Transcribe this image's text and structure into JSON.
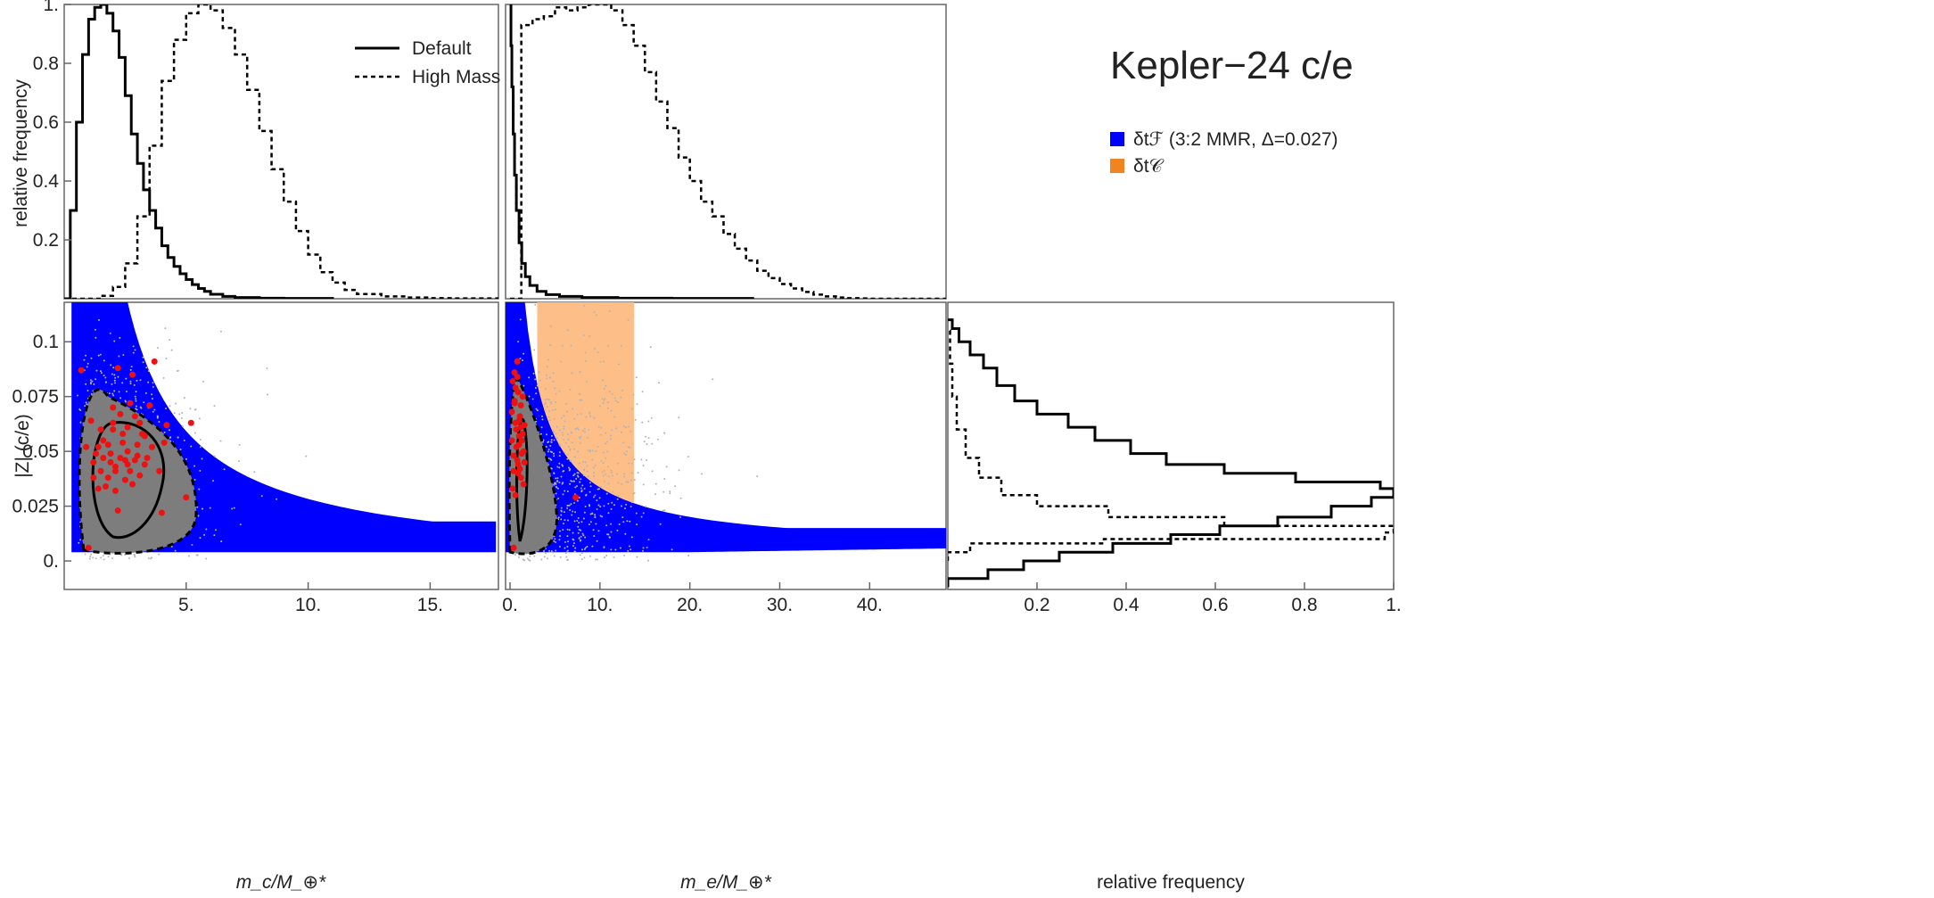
{
  "title": "Kepler−24 c/e",
  "colors": {
    "fundamental": "#0000ff",
    "chopping": "#f0841e",
    "chopping_fill": "#fdbf87",
    "posterior": "#7d7d7d",
    "scatter": "#b4b4b4",
    "samples": "#ee1111",
    "line": "#000000"
  },
  "legend_lines": [
    {
      "label": "Default",
      "style": "solid"
    },
    {
      "label": "High Mass",
      "style": "dashed"
    }
  ],
  "legend_regions": [
    {
      "label": "δtℱ (3:2 MMR, Δ=0.027)",
      "color": "#0000ff"
    },
    {
      "label": "δt𝒞",
      "color": "#f0841e"
    }
  ],
  "axis_labels": {
    "mc": "m_c/M_⊕*",
    "me": "m_e/M_⊕*",
    "z": "|Z| (c/e)",
    "relfreq": "relative frequency"
  },
  "chart_data": [
    {
      "panel": "top-left",
      "type": "line",
      "xlabel": "",
      "ylabel": "relative frequency",
      "xlim": [
        0,
        17.8
      ],
      "ylim": [
        0,
        1.0
      ],
      "yticks": [
        "0.2",
        "0.4",
        "0.6",
        "0.8",
        "1."
      ],
      "series": [
        {
          "name": "Default",
          "style": "solid",
          "x": [
            0.0,
            0.25,
            0.5,
            0.75,
            1.0,
            1.25,
            1.5,
            1.75,
            2.0,
            2.25,
            2.5,
            2.75,
            3.0,
            3.25,
            3.5,
            3.75,
            4.0,
            4.25,
            4.5,
            4.75,
            5.0,
            5.25,
            5.5,
            5.75,
            6.0,
            6.5,
            7.0,
            8.0,
            9.0,
            11.0
          ],
          "y": [
            0.0,
            0.3,
            0.6,
            0.83,
            0.95,
            0.99,
            1.0,
            0.97,
            0.91,
            0.82,
            0.69,
            0.56,
            0.46,
            0.37,
            0.3,
            0.24,
            0.18,
            0.14,
            0.11,
            0.085,
            0.065,
            0.048,
            0.035,
            0.025,
            0.015,
            0.008,
            0.004,
            0.002,
            0.001,
            0.0
          ]
        },
        {
          "name": "High Mass",
          "style": "dashed",
          "x": [
            0.0,
            1.5,
            2.0,
            2.5,
            3.0,
            3.5,
            4.0,
            4.5,
            5.0,
            5.5,
            6.0,
            6.5,
            7.0,
            7.5,
            8.0,
            8.5,
            9.0,
            9.5,
            10.0,
            10.5,
            11.0,
            11.5,
            12.0,
            13.0,
            14.0,
            15.0,
            16.0,
            17.8
          ],
          "y": [
            0.0,
            0.01,
            0.04,
            0.12,
            0.28,
            0.52,
            0.74,
            0.88,
            0.97,
            1.0,
            0.98,
            0.92,
            0.83,
            0.71,
            0.57,
            0.44,
            0.33,
            0.23,
            0.15,
            0.09,
            0.055,
            0.03,
            0.016,
            0.008,
            0.004,
            0.002,
            0.001,
            0.0
          ]
        }
      ]
    },
    {
      "panel": "top-middle",
      "type": "line",
      "xlim": [
        -0.5,
        48.5
      ],
      "ylim": [
        0,
        1.0
      ],
      "series": [
        {
          "name": "Default",
          "style": "solid",
          "x": [
            0.0,
            0.1,
            0.2,
            0.35,
            0.5,
            0.7,
            1.0,
            1.3,
            1.7,
            2.2,
            3.0,
            4.0,
            5.5,
            8.0,
            12.0,
            18.0,
            27.0
          ],
          "y": [
            1.0,
            0.86,
            0.72,
            0.56,
            0.42,
            0.3,
            0.19,
            0.12,
            0.075,
            0.045,
            0.025,
            0.014,
            0.008,
            0.004,
            0.002,
            0.001,
            0.0
          ]
        },
        {
          "name": "High Mass",
          "style": "dashed",
          "x": [
            0.0,
            1.25,
            2.5,
            3.75,
            5.0,
            6.25,
            7.5,
            8.75,
            10.0,
            11.25,
            12.5,
            13.75,
            15.0,
            16.25,
            17.5,
            18.75,
            20.0,
            21.25,
            22.5,
            23.75,
            25.0,
            26.25,
            27.5,
            28.75,
            30.0,
            31.25,
            32.5,
            33.75,
            35.0,
            36.25,
            37.5,
            38.75,
            40.0,
            42.5,
            45.0,
            48.5
          ],
          "y": [
            0.0,
            0.93,
            0.95,
            0.96,
            0.99,
            0.98,
            0.99,
            1.0,
            1.0,
            0.98,
            0.93,
            0.86,
            0.77,
            0.67,
            0.58,
            0.48,
            0.4,
            0.33,
            0.28,
            0.22,
            0.17,
            0.13,
            0.095,
            0.07,
            0.05,
            0.035,
            0.023,
            0.014,
            0.008,
            0.004,
            0.002,
            0.001,
            0.0,
            0.0,
            0.0,
            0.0
          ]
        }
      ]
    },
    {
      "panel": "bottom-left",
      "type": "scatter",
      "xlabel": "m_c/M_⊕*",
      "ylabel": "|Z| (c/e)",
      "xlim": [
        0,
        17.8
      ],
      "ylim": [
        -0.013,
        0.118
      ],
      "xticks": [
        "5.",
        "10.",
        "15."
      ],
      "yticks": [
        "0.",
        "0.025",
        "0.05",
        "0.075",
        "0.1"
      ],
      "points": [
        [
          0.7,
          0.087
        ],
        [
          0.9,
          0.052
        ],
        [
          1.1,
          0.064
        ],
        [
          1.2,
          0.045
        ],
        [
          1.3,
          0.049
        ],
        [
          1.4,
          0.052
        ],
        [
          1.5,
          0.041
        ],
        [
          1.6,
          0.047
        ],
        [
          1.7,
          0.034
        ],
        [
          1.8,
          0.053
        ],
        [
          1.9,
          0.049
        ],
        [
          2.0,
          0.06
        ],
        [
          2.1,
          0.043
        ],
        [
          2.2,
          0.088
        ],
        [
          2.3,
          0.047
        ],
        [
          2.4,
          0.054
        ],
        [
          2.5,
          0.037
        ],
        [
          2.6,
          0.05
        ],
        [
          2.7,
          0.072
        ],
        [
          2.8,
          0.085
        ],
        [
          2.9,
          0.046
        ],
        [
          3.0,
          0.053
        ],
        [
          3.1,
          0.039
        ],
        [
          3.2,
          0.058
        ],
        [
          3.4,
          0.047
        ],
        [
          3.6,
          0.052
        ],
        [
          3.9,
          0.041
        ],
        [
          4.1,
          0.054
        ],
        [
          2.0,
          0.063
        ],
        [
          2.3,
          0.067
        ],
        [
          2.6,
          0.061
        ],
        [
          2.9,
          0.066
        ],
        [
          1.6,
          0.055
        ],
        [
          1.8,
          0.038
        ],
        [
          2.1,
          0.032
        ],
        [
          2.5,
          0.046
        ],
        [
          2.8,
          0.035
        ],
        [
          3.3,
          0.044
        ],
        [
          1.4,
          0.033
        ],
        [
          1.2,
          0.038
        ],
        [
          1.0,
          0.006
        ],
        [
          2.0,
          0.07
        ],
        [
          2.4,
          0.058
        ],
        [
          2.7,
          0.041
        ],
        [
          3.1,
          0.063
        ],
        [
          3.7,
          0.091
        ],
        [
          4.2,
          0.062
        ],
        [
          2.2,
          0.023
        ],
        [
          3.5,
          0.071
        ],
        [
          5.0,
          0.029
        ],
        [
          4.0,
          0.022
        ],
        [
          1.9,
          0.045
        ],
        [
          2.6,
          0.044
        ],
        [
          3.0,
          0.048
        ],
        [
          3.3,
          0.057
        ],
        [
          5.2,
          0.063
        ],
        [
          1.5,
          0.06
        ],
        [
          2.1,
          0.041
        ]
      ]
    },
    {
      "panel": "bottom-middle",
      "type": "scatter",
      "xlabel": "m_e/M_⊕*",
      "xlim": [
        -0.5,
        48.5
      ],
      "ylim": [
        -0.013,
        0.118
      ],
      "xticks": [
        "0.",
        "10.",
        "20.",
        "30.",
        "40."
      ],
      "shaded_band_x": [
        3.0,
        13.8
      ],
      "points": [
        [
          0.2,
          0.055
        ],
        [
          0.3,
          0.082
        ],
        [
          0.4,
          0.048
        ],
        [
          0.5,
          0.072
        ],
        [
          0.6,
          0.063
        ],
        [
          0.7,
          0.052
        ],
        [
          0.8,
          0.091
        ],
        [
          0.9,
          0.044
        ],
        [
          1.0,
          0.057
        ],
        [
          1.1,
          0.066
        ],
        [
          1.2,
          0.038
        ],
        [
          1.3,
          0.049
        ],
        [
          1.4,
          0.075
        ],
        [
          1.5,
          0.035
        ],
        [
          1.6,
          0.062
        ],
        [
          0.2,
          0.068
        ],
        [
          0.4,
          0.041
        ],
        [
          0.6,
          0.079
        ],
        [
          0.8,
          0.046
        ],
        [
          1.0,
          0.053
        ],
        [
          1.2,
          0.071
        ],
        [
          1.4,
          0.058
        ],
        [
          0.3,
          0.033
        ],
        [
          0.5,
          0.086
        ],
        [
          0.7,
          0.06
        ],
        [
          0.9,
          0.077
        ],
        [
          1.1,
          0.042
        ],
        [
          1.3,
          0.055
        ],
        [
          1.5,
          0.05
        ],
        [
          0.4,
          0.006
        ],
        [
          0.6,
          0.03
        ],
        [
          0.8,
          0.084
        ],
        [
          1.0,
          0.064
        ],
        [
          1.6,
          0.045
        ],
        [
          7.3,
          0.029
        ],
        [
          0.5,
          0.073
        ],
        [
          1.2,
          0.061
        ],
        [
          0.9,
          0.04
        ]
      ]
    },
    {
      "panel": "bottom-right",
      "type": "line",
      "xlabel": "relative frequency",
      "xlim": [
        0,
        1.0
      ],
      "ylim": [
        -0.013,
        0.118
      ],
      "xticks": [
        "0.2",
        "0.4",
        "0.6",
        "0.8",
        "1."
      ],
      "series": [
        {
          "name": "Default",
          "style": "solid",
          "orientation": "horizontal",
          "y": [
            -0.012,
            -0.008,
            -0.004,
            0.0,
            0.004,
            0.008,
            0.012,
            0.016,
            0.02,
            0.025,
            0.029,
            0.033,
            0.036,
            0.04,
            0.044,
            0.049,
            0.055,
            0.061,
            0.067,
            0.073,
            0.08,
            0.088,
            0.094,
            0.1,
            0.106,
            0.11
          ],
          "x": [
            0.0,
            0.09,
            0.17,
            0.25,
            0.37,
            0.5,
            0.61,
            0.74,
            0.86,
            0.95,
            1.0,
            0.97,
            0.78,
            0.62,
            0.49,
            0.41,
            0.33,
            0.27,
            0.2,
            0.15,
            0.11,
            0.08,
            0.05,
            0.025,
            0.01,
            0.0
          ]
        },
        {
          "name": "High Mass",
          "style": "dashed",
          "orientation": "horizontal",
          "y": [
            0.0,
            0.004,
            0.008,
            0.01,
            0.013,
            0.016,
            0.02,
            0.025,
            0.03,
            0.038,
            0.047,
            0.06,
            0.075,
            0.09,
            0.105
          ],
          "x": [
            0.0,
            0.05,
            0.35,
            0.98,
            1.0,
            0.62,
            0.36,
            0.2,
            0.12,
            0.07,
            0.04,
            0.02,
            0.01,
            0.005,
            0.0
          ]
        }
      ]
    }
  ]
}
